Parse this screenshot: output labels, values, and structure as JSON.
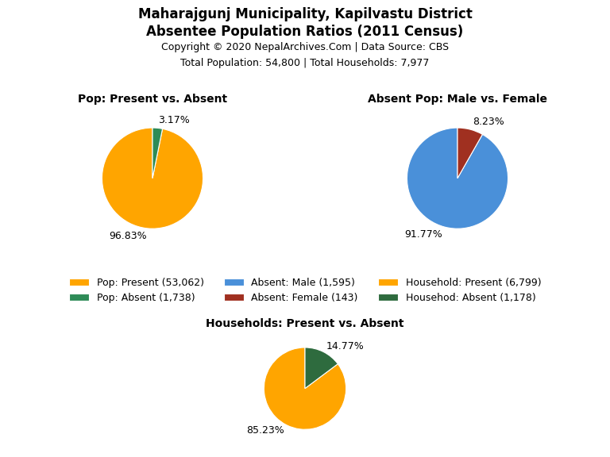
{
  "title": "Maharajgunj Municipality, Kapilvastu District",
  "subtitle": "Absentee Population Ratios (2011 Census)",
  "annotations": [
    "Copyright © 2020 NepalArchives.Com | Data Source: CBS",
    "Total Population: 54,800 | Total Households: 7,977"
  ],
  "legend": "center",
  "chart_data": [
    {
      "type": "pie",
      "title": "Pop: Present vs. Absent",
      "categories": [
        "Pop: Present (53,062)",
        "Pop: Absent (1,738)"
      ],
      "values": [
        96.83,
        3.17
      ],
      "value_labels": [
        "96.83%",
        "3.17%"
      ],
      "colors": [
        "#FFA500",
        "#2E8B57"
      ],
      "data_labels": true
    },
    {
      "type": "pie",
      "title": "Absent Pop: Male vs. Female",
      "categories": [
        "Absent: Male (1,595)",
        "Absent: Female (143)"
      ],
      "values": [
        91.77,
        8.23
      ],
      "value_labels": [
        "91.77%",
        "8.23%"
      ],
      "colors": [
        "#4A90D9",
        "#A03020"
      ],
      "data_labels": true
    },
    {
      "type": "pie",
      "title": "Households: Present vs. Absent",
      "categories": [
        "Household: Present (6,799)",
        "Househod: Absent (1,178)"
      ],
      "values": [
        85.23,
        14.77
      ],
      "value_labels": [
        "85.23%",
        "14.77%"
      ],
      "colors": [
        "#FFA500",
        "#2E6B3E"
      ],
      "data_labels": true
    }
  ]
}
